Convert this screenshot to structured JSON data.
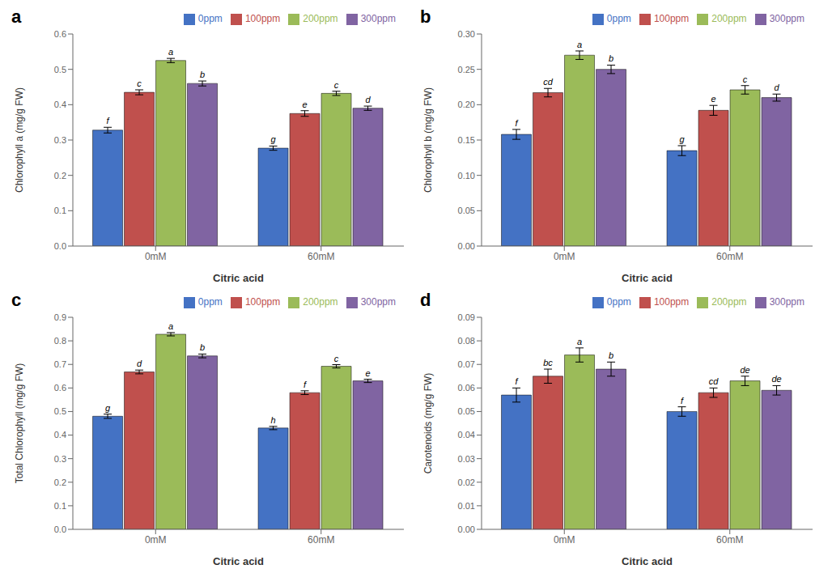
{
  "chart_data": [
    {
      "type": "bar",
      "title": "a",
      "xlabel": "Citric acid",
      "ylabel": "Chlorophyll a (mg/g FW)",
      "categories": [
        "0mM",
        "60mM"
      ],
      "series": [
        {
          "name": "0ppm",
          "color": "#4472C4",
          "values": [
            0.328,
            0.277
          ],
          "errors": [
            0.008,
            0.006
          ],
          "annotations": [
            "f",
            "g"
          ]
        },
        {
          "name": "100ppm",
          "color": "#C0504D",
          "values": [
            0.435,
            0.375
          ],
          "errors": [
            0.007,
            0.008
          ],
          "annotations": [
            "c",
            "e"
          ]
        },
        {
          "name": "200ppm",
          "color": "#9BBB59",
          "values": [
            0.525,
            0.432
          ],
          "errors": [
            0.006,
            0.006
          ],
          "annotations": [
            "a",
            "c"
          ]
        },
        {
          "name": "300ppm",
          "color": "#8064A2",
          "values": [
            0.46,
            0.39
          ],
          "errors": [
            0.007,
            0.006
          ],
          "annotations": [
            "b",
            "d"
          ]
        }
      ],
      "ylim": [
        0,
        0.6
      ],
      "yticks": [
        {
          "value": 0,
          "label": "0.0"
        },
        {
          "value": 0.1,
          "label": "0.1"
        },
        {
          "value": 0.2,
          "label": "0.2"
        },
        {
          "value": 0.3,
          "label": "0.3"
        },
        {
          "value": 0.4,
          "label": "0.4"
        },
        {
          "value": 0.5,
          "label": "0.5"
        },
        {
          "value": 0.6,
          "label": "0.6"
        }
      ],
      "legend": "upper right",
      "grid": false
    },
    {
      "type": "bar",
      "title": "b",
      "xlabel": "Citric acid",
      "ylabel": "Chlorophyll b (mg/g FW)",
      "categories": [
        "0mM",
        "60mM"
      ],
      "series": [
        {
          "name": "0ppm",
          "color": "#4472C4",
          "values": [
            0.158,
            0.135
          ],
          "errors": [
            0.007,
            0.007
          ],
          "annotations": [
            "f",
            "g"
          ]
        },
        {
          "name": "100ppm",
          "color": "#C0504D",
          "values": [
            0.217,
            0.192
          ],
          "errors": [
            0.006,
            0.007
          ],
          "annotations": [
            "cd",
            "e"
          ]
        },
        {
          "name": "200ppm",
          "color": "#9BBB59",
          "values": [
            0.27,
            0.221
          ],
          "errors": [
            0.006,
            0.006
          ],
          "annotations": [
            "a",
            "c"
          ]
        },
        {
          "name": "300ppm",
          "color": "#8064A2",
          "values": [
            0.25,
            0.21
          ],
          "errors": [
            0.006,
            0.005
          ],
          "annotations": [
            "b",
            "d"
          ]
        }
      ],
      "ylim": [
        0,
        0.3
      ],
      "yticks": [
        {
          "value": 0,
          "label": "0.00"
        },
        {
          "value": 0.05,
          "label": "0.05"
        },
        {
          "value": 0.1,
          "label": "0.10"
        },
        {
          "value": 0.15,
          "label": "0.15"
        },
        {
          "value": 0.2,
          "label": "0.20"
        },
        {
          "value": 0.25,
          "label": "0.25"
        },
        {
          "value": 0.3,
          "label": "0.30"
        }
      ],
      "legend": "upper right",
      "grid": false
    },
    {
      "type": "bar",
      "title": "c",
      "xlabel": "Citric acid",
      "ylabel": "Total Chlorophyll (mg/g FW)",
      "categories": [
        "0mM",
        "60mM"
      ],
      "series": [
        {
          "name": "0ppm",
          "color": "#4472C4",
          "values": [
            0.48,
            0.43
          ],
          "errors": [
            0.009,
            0.007
          ],
          "annotations": [
            "g",
            "h"
          ]
        },
        {
          "name": "100ppm",
          "color": "#C0504D",
          "values": [
            0.668,
            0.58
          ],
          "errors": [
            0.008,
            0.008
          ],
          "annotations": [
            "d",
            "f"
          ]
        },
        {
          "name": "200ppm",
          "color": "#9BBB59",
          "values": [
            0.828,
            0.692
          ],
          "errors": [
            0.007,
            0.007
          ],
          "annotations": [
            "a",
            "c"
          ]
        },
        {
          "name": "300ppm",
          "color": "#8064A2",
          "values": [
            0.736,
            0.63
          ],
          "errors": [
            0.008,
            0.007
          ],
          "annotations": [
            "b",
            "e"
          ]
        }
      ],
      "ylim": [
        0,
        0.9
      ],
      "yticks": [
        {
          "value": 0,
          "label": "0.0"
        },
        {
          "value": 0.1,
          "label": "0.1"
        },
        {
          "value": 0.2,
          "label": "0.2"
        },
        {
          "value": 0.3,
          "label": "0.3"
        },
        {
          "value": 0.4,
          "label": "0.4"
        },
        {
          "value": 0.5,
          "label": "0.5"
        },
        {
          "value": 0.6,
          "label": "0.6"
        },
        {
          "value": 0.7,
          "label": "0.7"
        },
        {
          "value": 0.8,
          "label": "0.8"
        },
        {
          "value": 0.9,
          "label": "0.9"
        }
      ],
      "legend": "upper right",
      "grid": false
    },
    {
      "type": "bar",
      "title": "d",
      "xlabel": "Citric acid",
      "ylabel": "Carotenoids (mg/g FW)",
      "categories": [
        "0mM",
        "60mM"
      ],
      "series": [
        {
          "name": "0ppm",
          "color": "#4472C4",
          "values": [
            0.057,
            0.05
          ],
          "errors": [
            0.003,
            0.002
          ],
          "annotations": [
            "f",
            "f"
          ]
        },
        {
          "name": "100ppm",
          "color": "#C0504D",
          "values": [
            0.065,
            0.058
          ],
          "errors": [
            0.003,
            0.002
          ],
          "annotations": [
            "bc",
            "cd"
          ]
        },
        {
          "name": "200ppm",
          "color": "#9BBB59",
          "values": [
            0.074,
            0.063
          ],
          "errors": [
            0.003,
            0.002
          ],
          "annotations": [
            "a",
            "de"
          ]
        },
        {
          "name": "300ppm",
          "color": "#8064A2",
          "values": [
            0.068,
            0.059
          ],
          "errors": [
            0.003,
            0.002
          ],
          "annotations": [
            "b",
            "de"
          ]
        }
      ],
      "ylim": [
        0,
        0.09
      ],
      "yticks": [
        {
          "value": 0,
          "label": "0.00"
        },
        {
          "value": 0.01,
          "label": "0.01"
        },
        {
          "value": 0.02,
          "label": "0.02"
        },
        {
          "value": 0.03,
          "label": "0.03"
        },
        {
          "value": 0.04,
          "label": "0.04"
        },
        {
          "value": 0.05,
          "label": "0.05"
        },
        {
          "value": 0.06,
          "label": "0.06"
        },
        {
          "value": 0.07,
          "label": "0.07"
        },
        {
          "value": 0.08,
          "label": "0.08"
        },
        {
          "value": 0.09,
          "label": "0.09"
        }
      ],
      "legend": "upper right",
      "grid": false
    }
  ]
}
